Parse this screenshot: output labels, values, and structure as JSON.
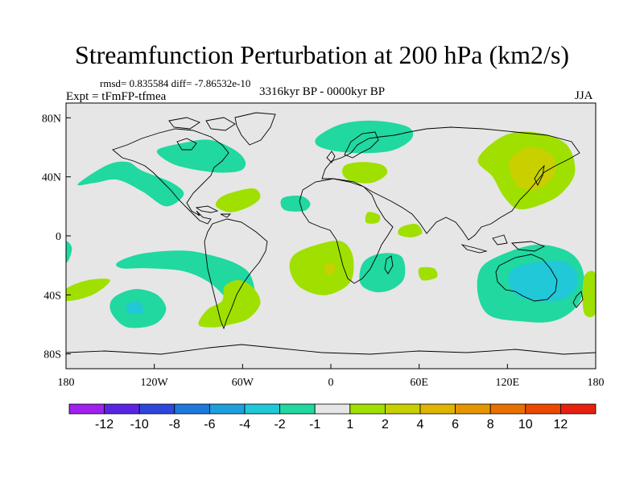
{
  "title": "Streamfunction Perturbation at 200 hPa (km2/s)",
  "stats": "rmsd= 0.835584 diff= -7.86532e-10",
  "experiment": "Expt = tFmFP-tfmea",
  "period": "3316kyr BP - 0000kyr BP",
  "season": "JJA",
  "map_data": {
    "type": "filled-contour-map",
    "projection": "cylindrical-equidistant",
    "lon_range": [
      -180,
      180
    ],
    "lat_range": [
      -90,
      90
    ],
    "x_ticks": [
      {
        "value": -180,
        "label": "180"
      },
      {
        "value": -120,
        "label": "120W"
      },
      {
        "value": -60,
        "label": "60W"
      },
      {
        "value": 0,
        "label": "0"
      },
      {
        "value": 60,
        "label": "60E"
      },
      {
        "value": 120,
        "label": "120E"
      },
      {
        "value": 180,
        "label": "180"
      }
    ],
    "y_ticks": [
      {
        "value": 80,
        "label": "80N"
      },
      {
        "value": 40,
        "label": "40N"
      },
      {
        "value": 0,
        "label": "0"
      },
      {
        "value": -40,
        "label": "40S"
      },
      {
        "value": -80,
        "label": "80S"
      }
    ],
    "regions": [
      {
        "name": "north-pacific-east",
        "value": -1.5,
        "points": [
          [
            -172,
            35
          ],
          [
            -152,
            48
          ],
          [
            -138,
            50
          ],
          [
            -128,
            44
          ],
          [
            -108,
            36
          ],
          [
            -100,
            28
          ],
          [
            -112,
            20
          ],
          [
            -128,
            30
          ],
          [
            -145,
            38
          ],
          [
            -160,
            36
          ]
        ]
      },
      {
        "name": "north-america-atlantic",
        "value": -1.5,
        "points": [
          [
            -118,
            58
          ],
          [
            -100,
            63
          ],
          [
            -82,
            65
          ],
          [
            -65,
            58
          ],
          [
            -58,
            50
          ],
          [
            -62,
            44
          ],
          [
            -78,
            43
          ],
          [
            -98,
            46
          ],
          [
            -110,
            50
          ]
        ]
      },
      {
        "name": "north-europe-arctic",
        "value": -1.5,
        "points": [
          [
            -8,
            68
          ],
          [
            8,
            76
          ],
          [
            30,
            78
          ],
          [
            52,
            74
          ],
          [
            55,
            66
          ],
          [
            42,
            58
          ],
          [
            20,
            56
          ],
          [
            0,
            58
          ],
          [
            -10,
            62
          ]
        ]
      },
      {
        "name": "mediterranean",
        "value": 1.5,
        "points": [
          [
            10,
            48
          ],
          [
            22,
            50
          ],
          [
            35,
            48
          ],
          [
            38,
            42
          ],
          [
            28,
            36
          ],
          [
            14,
            37
          ],
          [
            8,
            42
          ]
        ]
      },
      {
        "name": "caribbean",
        "value": 1.5,
        "points": [
          [
            -75,
            26
          ],
          [
            -65,
            30
          ],
          [
            -52,
            32
          ],
          [
            -48,
            26
          ],
          [
            -55,
            20
          ],
          [
            -68,
            16
          ],
          [
            -78,
            20
          ]
        ]
      },
      {
        "name": "central-atlantic",
        "value": -1.5,
        "points": [
          [
            -32,
            26
          ],
          [
            -20,
            27
          ],
          [
            -14,
            22
          ],
          [
            -18,
            17
          ],
          [
            -30,
            17
          ],
          [
            -34,
            21
          ]
        ]
      },
      {
        "name": "north-africa-small",
        "value": 1.5,
        "points": [
          [
            25,
            16
          ],
          [
            33,
            14
          ],
          [
            32,
            9
          ],
          [
            24,
            9
          ]
        ]
      },
      {
        "name": "arabian-sea",
        "value": 1.5,
        "points": [
          [
            48,
            6
          ],
          [
            58,
            8
          ],
          [
            62,
            2
          ],
          [
            55,
            -1
          ],
          [
            46,
            1
          ]
        ]
      },
      {
        "name": "east-asia-outer",
        "value": 1.5,
        "points": [
          [
            100,
            52
          ],
          [
            118,
            68
          ],
          [
            140,
            70
          ],
          [
            160,
            62
          ],
          [
            166,
            44
          ],
          [
            158,
            30
          ],
          [
            145,
            22
          ],
          [
            128,
            18
          ],
          [
            118,
            26
          ],
          [
            110,
            40
          ]
        ]
      },
      {
        "name": "east-asia-inner",
        "value": 2.5,
        "points": [
          [
            122,
            52
          ],
          [
            135,
            60
          ],
          [
            150,
            55
          ],
          [
            152,
            42
          ],
          [
            142,
            32
          ],
          [
            130,
            32
          ],
          [
            123,
            40
          ]
        ]
      },
      {
        "name": "south-pacific-west",
        "value": -1.5,
        "points": [
          [
            -145,
            -18
          ],
          [
            -128,
            -12
          ],
          [
            -100,
            -10
          ],
          [
            -78,
            -14
          ],
          [
            -62,
            -20
          ],
          [
            -54,
            -28
          ],
          [
            -52,
            -44
          ],
          [
            -62,
            -56
          ],
          [
            -70,
            -44
          ],
          [
            -82,
            -32
          ],
          [
            -100,
            -24
          ],
          [
            -125,
            -22
          ],
          [
            -142,
            -22
          ]
        ]
      },
      {
        "name": "south-america-south",
        "value": 1.5,
        "points": [
          [
            -72,
            -34
          ],
          [
            -62,
            -30
          ],
          [
            -52,
            -36
          ],
          [
            -48,
            -46
          ],
          [
            -56,
            -56
          ],
          [
            -68,
            -60
          ],
          [
            -80,
            -62
          ],
          [
            -90,
            -60
          ],
          [
            -84,
            -50
          ],
          [
            -74,
            -44
          ]
        ]
      },
      {
        "name": "south-pacific-east",
        "value": -1.5,
        "points": [
          [
            -145,
            -40
          ],
          [
            -132,
            -36
          ],
          [
            -118,
            -40
          ],
          [
            -112,
            -50
          ],
          [
            -120,
            -60
          ],
          [
            -138,
            -62
          ],
          [
            -148,
            -54
          ],
          [
            -150,
            -46
          ]
        ]
      },
      {
        "name": "south-pacific-east-core",
        "value": -2.5,
        "points": [
          [
            -138,
            -46
          ],
          [
            -130,
            -45
          ],
          [
            -128,
            -52
          ],
          [
            -138,
            -52
          ]
        ]
      },
      {
        "name": "south-atlantic",
        "value": 1.5,
        "points": [
          [
            -24,
            -12
          ],
          [
            -6,
            -5
          ],
          [
            8,
            -4
          ],
          [
            15,
            -14
          ],
          [
            14,
            -30
          ],
          [
            4,
            -38
          ],
          [
            -8,
            -40
          ],
          [
            -22,
            -34
          ],
          [
            -28,
            -22
          ]
        ]
      },
      {
        "name": "south-atlantic-core",
        "value": 2.5,
        "points": [
          [
            -4,
            -20
          ],
          [
            2,
            -19
          ],
          [
            2,
            -25
          ],
          [
            -3,
            -26
          ]
        ]
      },
      {
        "name": "south-africa-indian",
        "value": -1.5,
        "points": [
          [
            22,
            -18
          ],
          [
            34,
            -12
          ],
          [
            48,
            -14
          ],
          [
            50,
            -28
          ],
          [
            42,
            -36
          ],
          [
            30,
            -38
          ],
          [
            20,
            -32
          ]
        ]
      },
      {
        "name": "indian-small",
        "value": 1.5,
        "points": [
          [
            60,
            -22
          ],
          [
            70,
            -22
          ],
          [
            72,
            -28
          ],
          [
            62,
            -30
          ]
        ]
      },
      {
        "name": "australia-outer",
        "value": -1.5,
        "points": [
          [
            102,
            -22
          ],
          [
            118,
            -12
          ],
          [
            140,
            -6
          ],
          [
            160,
            -10
          ],
          [
            170,
            -20
          ],
          [
            172,
            -36
          ],
          [
            165,
            -50
          ],
          [
            150,
            -58
          ],
          [
            130,
            -58
          ],
          [
            108,
            -54
          ],
          [
            100,
            -40
          ]
        ]
      },
      {
        "name": "australia-inner",
        "value": -2.5,
        "points": [
          [
            122,
            -24
          ],
          [
            140,
            -18
          ],
          [
            160,
            -18
          ],
          [
            168,
            -30
          ],
          [
            160,
            -42
          ],
          [
            140,
            -44
          ],
          [
            124,
            -38
          ]
        ]
      },
      {
        "name": "pacific-east-edge",
        "value": 1.5,
        "points": [
          [
            172,
            -28
          ],
          [
            180,
            -26
          ],
          [
            180,
            -52
          ],
          [
            172,
            -52
          ]
        ]
      },
      {
        "name": "south-pacific-far-west",
        "value": 1.5,
        "points": [
          [
            -180,
            -36
          ],
          [
            -165,
            -30
          ],
          [
            -150,
            -30
          ],
          [
            -162,
            -40
          ],
          [
            -180,
            -44
          ]
        ]
      },
      {
        "name": "west-edge-small",
        "value": -1.5,
        "points": [
          [
            -180,
            -4
          ],
          [
            -176,
            -8
          ],
          [
            -178,
            -16
          ],
          [
            -180,
            -17
          ]
        ]
      }
    ]
  },
  "colorbar": {
    "colors": [
      "#a020f0",
      "#5a24e4",
      "#2f46dd",
      "#1f78dc",
      "#1ea0dc",
      "#20c8d8",
      "#20d8a0",
      "#e6e6e6",
      "#9fe000",
      "#c8d000",
      "#e0b400",
      "#e49600",
      "#e87000",
      "#ec4800",
      "#e82010"
    ],
    "labels": [
      "-12",
      "-10",
      "-8",
      "-6",
      "-4",
      "-2",
      "-1",
      "1",
      "2",
      "4",
      "6",
      "8",
      "10",
      "12"
    ],
    "levels": [
      -12,
      -10,
      -8,
      -6,
      -4,
      -2,
      -1,
      1,
      2,
      4,
      6,
      8,
      10,
      12
    ]
  }
}
